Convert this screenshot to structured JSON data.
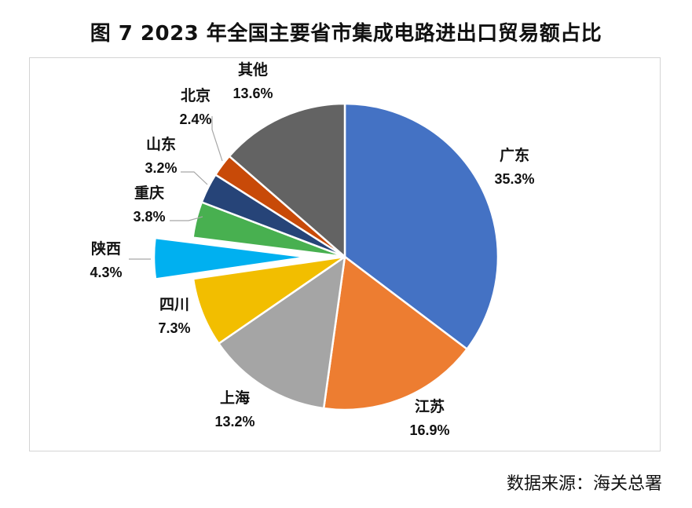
{
  "title": "图 7  2023 年全国主要省市集成电路进出口贸易额占比",
  "source": "数据来源：海关总署",
  "chart_data": {
    "type": "pie",
    "title": "图 7  2023 年全国主要省市集成电路进出口贸易额占比",
    "start_angle_deg": 0,
    "direction": "clockwise",
    "exploded": [
      "陕西"
    ],
    "slices": [
      {
        "label": "广东",
        "value": 35.3,
        "value_text": "35.3%",
        "color": "#4472C4"
      },
      {
        "label": "江苏",
        "value": 16.9,
        "value_text": "16.9%",
        "color": "#ED7D31"
      },
      {
        "label": "上海",
        "value": 13.2,
        "value_text": "13.2%",
        "color": "#A5A5A5"
      },
      {
        "label": "四川",
        "value": 7.3,
        "value_text": "7.3%",
        "color": "#F2BE00"
      },
      {
        "label": "陕西",
        "value": 4.3,
        "value_text": "4.3%",
        "color": "#00B0F0"
      },
      {
        "label": "重庆",
        "value": 3.8,
        "value_text": "3.8%",
        "color": "#48B050"
      },
      {
        "label": "山东",
        "value": 3.2,
        "value_text": "3.2%",
        "color": "#264478"
      },
      {
        "label": "北京",
        "value": 2.4,
        "value_text": "2.4%",
        "color": "#C84A08"
      },
      {
        "label": "其他",
        "value": 13.6,
        "value_text": "13.6%",
        "color": "#636363"
      }
    ]
  }
}
